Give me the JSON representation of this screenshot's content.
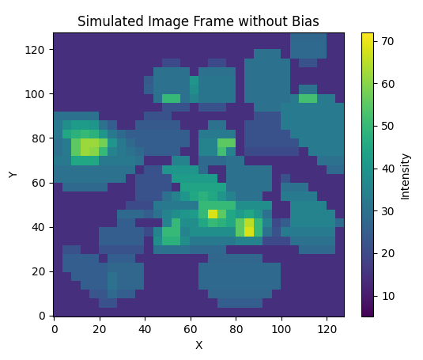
{
  "chart_data": {
    "type": "heatmap",
    "title": "Simulated Image Frame without Bias",
    "x_label": "X",
    "y_label": "Y",
    "xlim": [
      -0.5,
      127.5
    ],
    "ylim": [
      -0.5,
      127.5
    ],
    "xticks": [
      0,
      20,
      40,
      60,
      80,
      100,
      120
    ],
    "yticks": [
      0,
      20,
      40,
      60,
      80,
      100,
      120
    ],
    "colorbar_label": "Intensity",
    "color_range": [
      5,
      72
    ],
    "color_ticks": [
      10,
      20,
      30,
      40,
      50,
      60,
      70
    ],
    "cells": [
      [
        14,
        14,
        14,
        14,
        14,
        14,
        14,
        14,
        14,
        14,
        14,
        14,
        14,
        14,
        14,
        14,
        14,
        14,
        14,
        14,
        14,
        14,
        14,
        14,
        14,
        14,
        27,
        27,
        27,
        27,
        14,
        14
      ],
      [
        14,
        14,
        14,
        14,
        14,
        14,
        14,
        14,
        14,
        14,
        14,
        14,
        14,
        14,
        14,
        14,
        14,
        14,
        14,
        14,
        14,
        14,
        14,
        14,
        14,
        14,
        28,
        28,
        28,
        28,
        14,
        14
      ],
      [
        14,
        14,
        14,
        14,
        14,
        14,
        14,
        14,
        14,
        14,
        14,
        14,
        14,
        14,
        14,
        14,
        14,
        14,
        14,
        14,
        14,
        14,
        30,
        30,
        30,
        14,
        28,
        28,
        28,
        28,
        14,
        14
      ],
      [
        14,
        14,
        14,
        14,
        14,
        14,
        14,
        14,
        14,
        14,
        14,
        14,
        20,
        20,
        14,
        14,
        14,
        20,
        20,
        14,
        14,
        30,
        30,
        30,
        30,
        30,
        14,
        22,
        22,
        14,
        14,
        14
      ],
      [
        14,
        14,
        14,
        14,
        14,
        14,
        14,
        14,
        14,
        14,
        14,
        30,
        30,
        30,
        30,
        14,
        30,
        30,
        30,
        30,
        14,
        30,
        30,
        30,
        30,
        30,
        14,
        14,
        14,
        14,
        14,
        14
      ],
      [
        14,
        14,
        14,
        14,
        14,
        14,
        14,
        14,
        14,
        14,
        24,
        30,
        30,
        30,
        30,
        40,
        31,
        31,
        31,
        31,
        14,
        30,
        30,
        30,
        30,
        30,
        14,
        14,
        14,
        14,
        14,
        14
      ],
      [
        14,
        14,
        14,
        14,
        14,
        14,
        14,
        14,
        14,
        14,
        25,
        30,
        30,
        30,
        30,
        38,
        31,
        31,
        31,
        31,
        14,
        30,
        30,
        30,
        30,
        30,
        14,
        30,
        30,
        14,
        14,
        14
      ],
      [
        14,
        14,
        14,
        14,
        14,
        14,
        14,
        14,
        14,
        14,
        14,
        30,
        50,
        50,
        30,
        35,
        31,
        31,
        31,
        31,
        14,
        30,
        30,
        30,
        30,
        30,
        33,
        52,
        52,
        33,
        33,
        14
      ],
      [
        14,
        14,
        14,
        14,
        14,
        14,
        14,
        14,
        14,
        14,
        14,
        14,
        22,
        22,
        22,
        14,
        22,
        22,
        22,
        14,
        14,
        14,
        30,
        30,
        30,
        33,
        33,
        33,
        33,
        33,
        33,
        33
      ],
      [
        30,
        30,
        30,
        30,
        30,
        14,
        14,
        14,
        14,
        14,
        22,
        22,
        22,
        14,
        14,
        14,
        14,
        14,
        14,
        14,
        14,
        14,
        22,
        22,
        22,
        33,
        33,
        33,
        33,
        33,
        33,
        33
      ],
      [
        32,
        38,
        42,
        42,
        40,
        30,
        25,
        14,
        14,
        24,
        24,
        24,
        24,
        24,
        14,
        14,
        14,
        30,
        30,
        14,
        14,
        22,
        22,
        22,
        22,
        33,
        33,
        33,
        33,
        33,
        33,
        33
      ],
      [
        32,
        45,
        48,
        50,
        48,
        40,
        32,
        28,
        25,
        25,
        25,
        25,
        25,
        25,
        25,
        14,
        33,
        33,
        33,
        33,
        14,
        22,
        22,
        22,
        22,
        22,
        33,
        33,
        33,
        33,
        33,
        33
      ],
      [
        30,
        33,
        55,
        62,
        62,
        58,
        40,
        32,
        28,
        25,
        25,
        25,
        25,
        25,
        25,
        14,
        35,
        35,
        55,
        55,
        14,
        22,
        22,
        22,
        22,
        22,
        22,
        33,
        33,
        33,
        33,
        33
      ],
      [
        30,
        33,
        55,
        62,
        60,
        50,
        35,
        32,
        30,
        28,
        25,
        25,
        25,
        25,
        14,
        14,
        35,
        35,
        52,
        35,
        14,
        20,
        20,
        20,
        20,
        20,
        20,
        14,
        33,
        33,
        33,
        33
      ],
      [
        32,
        32,
        45,
        45,
        45,
        32,
        32,
        32,
        32,
        30,
        14,
        14,
        14,
        35,
        35,
        14,
        28,
        28,
        28,
        30,
        30,
        14,
        14,
        14,
        14,
        14,
        14,
        14,
        14,
        30,
        30,
        30
      ],
      [
        30,
        30,
        30,
        30,
        30,
        30,
        30,
        30,
        30,
        14,
        22,
        22,
        40,
        40,
        40,
        40,
        28,
        14,
        14,
        30,
        30,
        30,
        30,
        30,
        14,
        14,
        14,
        14,
        14,
        14,
        28,
        28
      ],
      [
        30,
        30,
        30,
        30,
        30,
        30,
        30,
        30,
        14,
        22,
        22,
        22,
        22,
        42,
        42,
        42,
        42,
        42,
        14,
        30,
        30,
        30,
        30,
        30,
        14,
        22,
        14,
        14,
        14,
        14,
        14,
        14
      ],
      [
        14,
        28,
        28,
        28,
        28,
        28,
        14,
        14,
        14,
        22,
        22,
        22,
        22,
        14,
        44,
        44,
        44,
        44,
        44,
        30,
        30,
        30,
        30,
        30,
        14,
        30,
        30,
        30,
        14,
        14,
        14,
        14
      ],
      [
        14,
        14,
        14,
        14,
        14,
        14,
        14,
        14,
        14,
        22,
        22,
        22,
        30,
        35,
        40,
        45,
        48,
        45,
        40,
        35,
        30,
        30,
        30,
        14,
        14,
        33,
        33,
        33,
        33,
        14,
        14,
        14
      ],
      [
        14,
        14,
        14,
        14,
        14,
        14,
        14,
        14,
        20,
        20,
        20,
        32,
        32,
        32,
        32,
        32,
        50,
        50,
        50,
        50,
        38,
        38,
        38,
        38,
        14,
        14,
        35,
        35,
        35,
        35,
        14,
        14
      ],
      [
        14,
        14,
        14,
        14,
        14,
        14,
        14,
        28,
        28,
        28,
        25,
        30,
        35,
        38,
        40,
        42,
        50,
        68,
        55,
        45,
        42,
        45,
        40,
        30,
        14,
        14,
        35,
        35,
        35,
        35,
        35,
        14
      ],
      [
        14,
        14,
        14,
        14,
        14,
        14,
        14,
        25,
        25,
        14,
        14,
        14,
        35,
        50,
        38,
        38,
        45,
        50,
        48,
        45,
        55,
        65,
        50,
        35,
        20,
        25,
        35,
        35,
        35,
        35,
        35,
        28
      ],
      [
        14,
        14,
        14,
        14,
        14,
        25,
        25,
        25,
        25,
        25,
        20,
        35,
        50,
        50,
        35,
        38,
        38,
        38,
        38,
        38,
        55,
        68,
        50,
        30,
        22,
        33,
        33,
        33,
        33,
        33,
        33,
        14
      ],
      [
        14,
        14,
        14,
        14,
        14,
        25,
        25,
        25,
        25,
        25,
        14,
        38,
        48,
        48,
        38,
        32,
        32,
        32,
        32,
        32,
        35,
        35,
        35,
        20,
        20,
        20,
        30,
        30,
        30,
        30,
        30,
        14
      ],
      [
        14,
        22,
        22,
        14,
        14,
        22,
        22,
        22,
        22,
        22,
        14,
        30,
        30,
        30,
        30,
        28,
        28,
        28,
        28,
        14,
        14,
        14,
        14,
        14,
        14,
        14,
        14,
        28,
        28,
        28,
        28,
        14
      ],
      [
        14,
        25,
        25,
        25,
        25,
        14,
        25,
        25,
        25,
        14,
        14,
        14,
        14,
        14,
        14,
        14,
        14,
        27,
        27,
        27,
        27,
        27,
        27,
        14,
        14,
        14,
        14,
        14,
        14,
        14,
        14,
        14
      ],
      [
        14,
        25,
        25,
        25,
        25,
        25,
        27,
        27,
        27,
        27,
        14,
        14,
        14,
        14,
        14,
        14,
        28,
        28,
        28,
        28,
        28,
        28,
        28,
        28,
        28,
        14,
        14,
        14,
        14,
        14,
        14,
        14
      ],
      [
        14,
        14,
        25,
        25,
        25,
        25,
        30,
        27,
        27,
        27,
        14,
        14,
        14,
        14,
        14,
        14,
        28,
        28,
        28,
        28,
        28,
        28,
        28,
        28,
        28,
        14,
        14,
        14,
        14,
        14,
        14,
        14
      ],
      [
        14,
        14,
        14,
        25,
        25,
        25,
        30,
        27,
        27,
        27,
        14,
        14,
        14,
        14,
        14,
        14,
        28,
        28,
        28,
        28,
        28,
        28,
        28,
        28,
        28,
        14,
        14,
        14,
        14,
        14,
        14,
        14
      ],
      [
        14,
        14,
        14,
        14,
        23,
        23,
        28,
        25,
        25,
        14,
        14,
        14,
        14,
        14,
        14,
        14,
        14,
        27,
        27,
        27,
        27,
        27,
        27,
        27,
        14,
        14,
        14,
        14,
        14,
        14,
        14,
        14
      ],
      [
        14,
        14,
        14,
        14,
        14,
        22,
        22,
        14,
        14,
        14,
        14,
        14,
        14,
        14,
        14,
        14,
        14,
        14,
        25,
        25,
        25,
        25,
        25,
        14,
        14,
        14,
        14,
        14,
        14,
        14,
        14,
        14
      ],
      [
        14,
        14,
        14,
        14,
        14,
        14,
        14,
        14,
        14,
        14,
        14,
        14,
        14,
        14,
        14,
        14,
        14,
        14,
        14,
        14,
        14,
        14,
        14,
        14,
        14,
        14,
        14,
        14,
        14,
        14,
        14,
        14
      ]
    ]
  }
}
